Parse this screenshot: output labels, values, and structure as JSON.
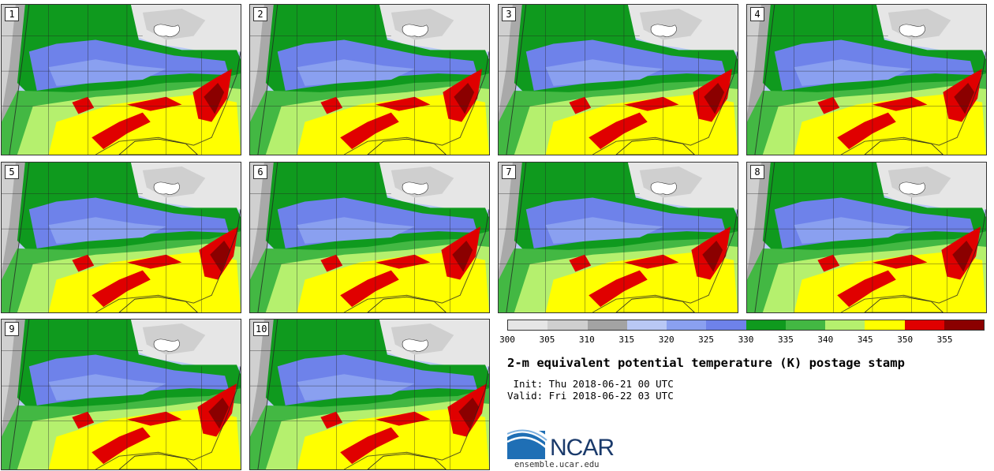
{
  "panels": [
    {
      "label": "1"
    },
    {
      "label": "2"
    },
    {
      "label": "3"
    },
    {
      "label": "4"
    },
    {
      "label": "5"
    },
    {
      "label": "6"
    },
    {
      "label": "7"
    },
    {
      "label": "8"
    },
    {
      "label": "9"
    },
    {
      "label": "10"
    }
  ],
  "colorbar": {
    "colors": [
      "#e6e6e6",
      "#cfcfcf",
      "#a3a3a3",
      "#b9c8f5",
      "#8aa0f0",
      "#6e82ea",
      "#0f9a1e",
      "#43b843",
      "#b5f06e",
      "#ffff00",
      "#e00000",
      "#8b0000"
    ],
    "ticks": [
      "300",
      "305",
      "310",
      "315",
      "320",
      "325",
      "330",
      "335",
      "340",
      "345",
      "350",
      "355"
    ]
  },
  "title": "2-m equivalent potential temperature (K) postage stamp",
  "init": " Init: Thu 2018-06-21 00 UTC",
  "valid": "Valid: Fri 2018-06-22 03 UTC",
  "logo": {
    "text": "NCAR",
    "website": "ensemble.ucar.edu"
  }
}
